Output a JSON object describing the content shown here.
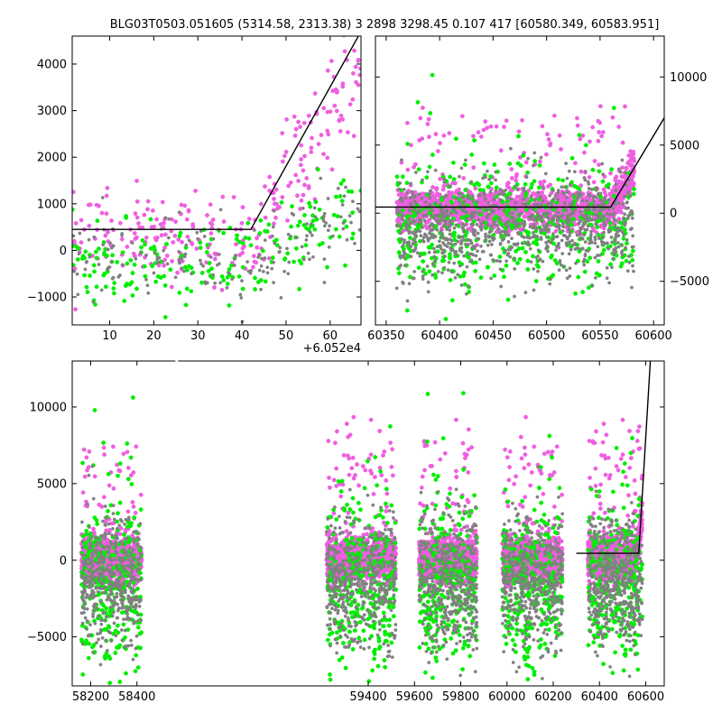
{
  "title": "BLG03T0503.051605 (5314.58, 2313.38)    3 2898 3298.45 0.107 417 [60580.349, 60583.951]",
  "colors": {
    "magenta": "#ee5fe0",
    "green": "#00ee00",
    "gray": "#808080",
    "line": "#000000"
  },
  "chart_data": [
    {
      "id": "zoom",
      "type": "scatter",
      "x_offset_label": "+6.052e4",
      "xlim": [
        1.5,
        67
      ],
      "ylim": [
        -1600,
        4600
      ],
      "xticks": [
        10,
        20,
        30,
        40,
        50,
        60
      ],
      "xtick_labels": [
        "10",
        "20",
        "30",
        "40",
        "50",
        "60"
      ],
      "yticks": [
        -1000,
        0,
        1000,
        2000,
        3000,
        4000
      ],
      "ytick_labels": [
        "−1000",
        "0",
        "1000",
        "2000",
        "3000",
        "4000"
      ],
      "yaxis_side": "left",
      "model_line": {
        "x": [
          1.5,
          42,
          67
        ],
        "y": [
          450,
          450,
          4700
        ]
      }
    },
    {
      "id": "season",
      "type": "scatter",
      "xlim": [
        60340,
        60610
      ],
      "ylim": [
        -8200,
        13000
      ],
      "xticks": [
        60350,
        60400,
        60450,
        60500,
        60550,
        60600
      ],
      "xtick_labels": [
        "60350",
        "60400",
        "60450",
        "60500",
        "60550",
        "60600"
      ],
      "yticks": [
        -5000,
        0,
        5000,
        10000
      ],
      "ytick_labels": [
        "−5000",
        "0",
        "5000",
        "10000"
      ],
      "yaxis_side": "right",
      "model_line": {
        "x": [
          60340,
          60560,
          60610
        ],
        "y": [
          450,
          450,
          7000
        ]
      }
    },
    {
      "id": "full",
      "type": "scatter",
      "xlim": [
        58120,
        60680
      ],
      "ylim": [
        -8200,
        13000
      ],
      "xticks": [
        58200,
        58400,
        59400,
        59600,
        59800,
        60000,
        60200,
        60400,
        60600
      ],
      "xtick_labels": [
        "58200",
        "58400",
        "59400",
        "59600",
        "59800",
        "60000",
        "60200",
        "60400",
        "60600"
      ],
      "yticks": [
        -5000,
        0,
        5000,
        10000
      ],
      "ytick_labels": [
        "−5000",
        "0",
        "5000",
        "10000"
      ],
      "yaxis_side": "left",
      "seasons": [
        [
          58160,
          58420
        ],
        [
          59220,
          59520
        ],
        [
          59620,
          59870
        ],
        [
          59980,
          60240
        ],
        [
          60350,
          60585
        ]
      ],
      "model_line": {
        "x": [
          60300,
          60570,
          60620
        ],
        "y": [
          450,
          450,
          13000
        ]
      }
    }
  ]
}
